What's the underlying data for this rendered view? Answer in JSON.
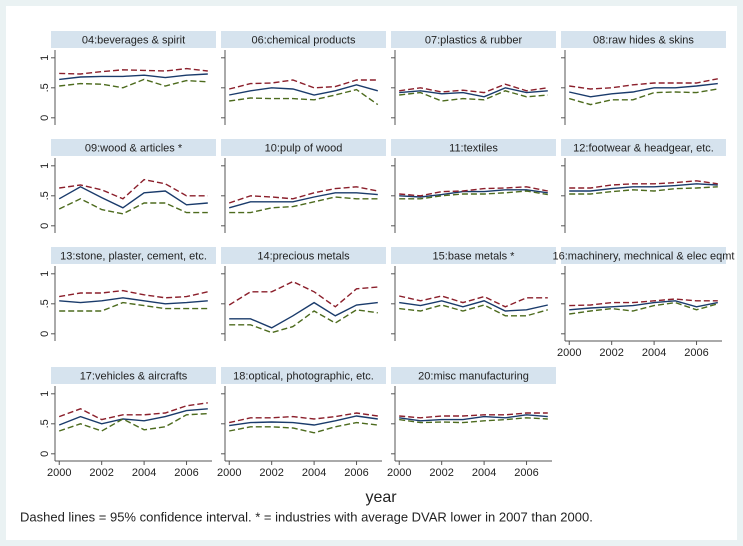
{
  "chart_data": {
    "type": "line",
    "xlabel": "year",
    "note": "Dashed lines = 95% confidence interval. * = industries with average DVAR lower in 2007 than 2000.",
    "x": [
      2000,
      2001,
      2002,
      2003,
      2004,
      2005,
      2006,
      2007
    ],
    "xlim": [
      1999.8,
      2007.2
    ],
    "xticks": [
      2000,
      2002,
      2004,
      2006
    ],
    "ylim": [
      -0.12,
      1.13
    ],
    "yticks": [
      0,
      {
        "value": 0.5,
        "label": ".5"
      },
      1
    ],
    "panels": [
      {
        "title": "04:beverages & spirit",
        "series": [
          {
            "color": "#1a3b6b",
            "dashed": false,
            "values": [
              0.64,
              0.68,
              0.69,
              0.69,
              0.71,
              0.67,
              0.71,
              0.73
            ]
          },
          {
            "color": "#8b1f2b",
            "dashed": true,
            "values": [
              0.74,
              0.73,
              0.77,
              0.8,
              0.79,
              0.78,
              0.82,
              0.78
            ]
          },
          {
            "color": "#4d6b1e",
            "dashed": true,
            "values": [
              0.53,
              0.57,
              0.56,
              0.5,
              0.64,
              0.53,
              0.62,
              0.6
            ]
          }
        ]
      },
      {
        "title": "06:chemical products",
        "series": [
          {
            "color": "#1a3b6b",
            "dashed": false,
            "values": [
              0.38,
              0.45,
              0.5,
              0.48,
              0.38,
              0.45,
              0.55,
              0.45
            ]
          },
          {
            "color": "#8b1f2b",
            "dashed": true,
            "values": [
              0.48,
              0.57,
              0.58,
              0.63,
              0.5,
              0.52,
              0.63,
              0.63
            ]
          },
          {
            "color": "#4d6b1e",
            "dashed": true,
            "values": [
              0.28,
              0.33,
              0.32,
              0.32,
              0.3,
              0.38,
              0.47,
              0.22
            ]
          }
        ]
      },
      {
        "title": "07:plastics & rubber",
        "series": [
          {
            "color": "#1a3b6b",
            "dashed": false,
            "values": [
              0.42,
              0.45,
              0.4,
              0.42,
              0.35,
              0.5,
              0.42,
              0.45
            ]
          },
          {
            "color": "#8b1f2b",
            "dashed": true,
            "values": [
              0.45,
              0.5,
              0.43,
              0.46,
              0.42,
              0.56,
              0.45,
              0.5
            ]
          },
          {
            "color": "#4d6b1e",
            "dashed": true,
            "values": [
              0.38,
              0.42,
              0.28,
              0.32,
              0.3,
              0.45,
              0.35,
              0.38
            ]
          }
        ]
      },
      {
        "title": "08:raw hides & skins",
        "series": [
          {
            "color": "#1a3b6b",
            "dashed": false,
            "values": [
              0.43,
              0.35,
              0.4,
              0.43,
              0.5,
              0.5,
              0.53,
              0.57
            ]
          },
          {
            "color": "#8b1f2b",
            "dashed": true,
            "values": [
              0.53,
              0.48,
              0.5,
              0.55,
              0.58,
              0.58,
              0.58,
              0.65
            ]
          },
          {
            "color": "#4d6b1e",
            "dashed": true,
            "values": [
              0.32,
              0.22,
              0.3,
              0.3,
              0.42,
              0.43,
              0.42,
              0.48
            ]
          }
        ]
      },
      {
        "title": "09:wood & articles *",
        "series": [
          {
            "color": "#1a3b6b",
            "dashed": false,
            "values": [
              0.45,
              0.65,
              0.47,
              0.3,
              0.55,
              0.58,
              0.35,
              0.38
            ]
          },
          {
            "color": "#8b1f2b",
            "dashed": true,
            "values": [
              0.63,
              0.68,
              0.6,
              0.45,
              0.77,
              0.7,
              0.5,
              0.5
            ]
          },
          {
            "color": "#4d6b1e",
            "dashed": true,
            "values": [
              0.28,
              0.45,
              0.27,
              0.2,
              0.38,
              0.38,
              0.22,
              0.22
            ]
          }
        ]
      },
      {
        "title": "10:pulp of wood",
        "series": [
          {
            "color": "#1a3b6b",
            "dashed": false,
            "values": [
              0.3,
              0.4,
              0.4,
              0.4,
              0.48,
              0.55,
              0.55,
              0.52
            ]
          },
          {
            "color": "#8b1f2b",
            "dashed": true,
            "values": [
              0.38,
              0.5,
              0.48,
              0.45,
              0.55,
              0.62,
              0.65,
              0.58
            ]
          },
          {
            "color": "#4d6b1e",
            "dashed": true,
            "values": [
              0.22,
              0.22,
              0.3,
              0.32,
              0.4,
              0.48,
              0.45,
              0.45
            ]
          }
        ]
      },
      {
        "title": "11:textiles",
        "series": [
          {
            "color": "#1a3b6b",
            "dashed": false,
            "values": [
              0.5,
              0.48,
              0.52,
              0.57,
              0.57,
              0.6,
              0.6,
              0.55
            ]
          },
          {
            "color": "#8b1f2b",
            "dashed": true,
            "values": [
              0.53,
              0.5,
              0.57,
              0.58,
              0.62,
              0.63,
              0.65,
              0.58
            ]
          },
          {
            "color": "#4d6b1e",
            "dashed": true,
            "values": [
              0.45,
              0.45,
              0.5,
              0.53,
              0.53,
              0.55,
              0.58,
              0.52
            ]
          }
        ]
      },
      {
        "title": "12:footwear & headgear, etc.",
        "series": [
          {
            "color": "#1a3b6b",
            "dashed": false,
            "values": [
              0.58,
              0.58,
              0.62,
              0.65,
              0.65,
              0.67,
              0.7,
              0.68
            ]
          },
          {
            "color": "#8b1f2b",
            "dashed": true,
            "values": [
              0.63,
              0.63,
              0.68,
              0.7,
              0.7,
              0.72,
              0.75,
              0.7
            ]
          },
          {
            "color": "#4d6b1e",
            "dashed": true,
            "values": [
              0.53,
              0.53,
              0.57,
              0.6,
              0.58,
              0.62,
              0.63,
              0.65
            ]
          }
        ]
      },
      {
        "title": "13:stone, plaster, cement, etc.",
        "series": [
          {
            "color": "#1a3b6b",
            "dashed": false,
            "values": [
              0.55,
              0.52,
              0.55,
              0.6,
              0.55,
              0.5,
              0.52,
              0.55
            ]
          },
          {
            "color": "#8b1f2b",
            "dashed": true,
            "values": [
              0.62,
              0.68,
              0.68,
              0.72,
              0.65,
              0.6,
              0.62,
              0.7
            ]
          },
          {
            "color": "#4d6b1e",
            "dashed": true,
            "values": [
              0.38,
              0.38,
              0.38,
              0.52,
              0.47,
              0.42,
              0.42,
              0.42
            ]
          }
        ]
      },
      {
        "title": "14:precious metals",
        "series": [
          {
            "color": "#1a3b6b",
            "dashed": false,
            "values": [
              0.25,
              0.25,
              0.1,
              0.3,
              0.52,
              0.3,
              0.48,
              0.52
            ]
          },
          {
            "color": "#8b1f2b",
            "dashed": true,
            "values": [
              0.48,
              0.7,
              0.7,
              0.87,
              0.7,
              0.45,
              0.75,
              0.78
            ]
          },
          {
            "color": "#4d6b1e",
            "dashed": true,
            "values": [
              0.15,
              0.15,
              0.02,
              0.12,
              0.38,
              0.18,
              0.4,
              0.35
            ]
          }
        ]
      },
      {
        "title": "15:base metals *",
        "series": [
          {
            "color": "#1a3b6b",
            "dashed": false,
            "values": [
              0.52,
              0.47,
              0.55,
              0.45,
              0.55,
              0.38,
              0.4,
              0.48
            ]
          },
          {
            "color": "#8b1f2b",
            "dashed": true,
            "values": [
              0.63,
              0.55,
              0.63,
              0.52,
              0.62,
              0.45,
              0.6,
              0.6
            ]
          },
          {
            "color": "#4d6b1e",
            "dashed": true,
            "values": [
              0.42,
              0.38,
              0.48,
              0.38,
              0.48,
              0.3,
              0.3,
              0.4
            ]
          }
        ]
      },
      {
        "title": "16:machinery, mechnical & elec eqmt",
        "series": [
          {
            "color": "#1a3b6b",
            "dashed": false,
            "values": [
              0.4,
              0.43,
              0.45,
              0.47,
              0.52,
              0.55,
              0.45,
              0.52
            ]
          },
          {
            "color": "#8b1f2b",
            "dashed": true,
            "values": [
              0.47,
              0.48,
              0.52,
              0.52,
              0.55,
              0.58,
              0.55,
              0.55
            ]
          },
          {
            "color": "#4d6b1e",
            "dashed": true,
            "values": [
              0.33,
              0.38,
              0.42,
              0.38,
              0.47,
              0.52,
              0.4,
              0.5
            ]
          }
        ]
      },
      {
        "title": "17:vehicles & aircrafts",
        "series": [
          {
            "color": "#1a3b6b",
            "dashed": false,
            "values": [
              0.48,
              0.62,
              0.5,
              0.58,
              0.55,
              0.62,
              0.72,
              0.75
            ]
          },
          {
            "color": "#8b1f2b",
            "dashed": true,
            "values": [
              0.62,
              0.75,
              0.57,
              0.65,
              0.65,
              0.68,
              0.8,
              0.85
            ]
          },
          {
            "color": "#4d6b1e",
            "dashed": true,
            "values": [
              0.38,
              0.5,
              0.38,
              0.58,
              0.4,
              0.45,
              0.65,
              0.67
            ]
          }
        ]
      },
      {
        "title": "18:optical, photographic, etc.",
        "series": [
          {
            "color": "#1a3b6b",
            "dashed": false,
            "values": [
              0.47,
              0.52,
              0.53,
              0.52,
              0.48,
              0.55,
              0.63,
              0.58
            ]
          },
          {
            "color": "#8b1f2b",
            "dashed": true,
            "values": [
              0.52,
              0.6,
              0.6,
              0.62,
              0.58,
              0.62,
              0.68,
              0.63
            ]
          },
          {
            "color": "#4d6b1e",
            "dashed": true,
            "values": [
              0.38,
              0.45,
              0.45,
              0.43,
              0.35,
              0.45,
              0.52,
              0.48
            ]
          }
        ]
      },
      {
        "title": "20:misc manufacturing",
        "series": [
          {
            "color": "#1a3b6b",
            "dashed": false,
            "values": [
              0.6,
              0.55,
              0.57,
              0.57,
              0.62,
              0.6,
              0.65,
              0.62
            ]
          },
          {
            "color": "#8b1f2b",
            "dashed": true,
            "values": [
              0.63,
              0.6,
              0.63,
              0.63,
              0.65,
              0.65,
              0.68,
              0.68
            ]
          },
          {
            "color": "#4d6b1e",
            "dashed": true,
            "values": [
              0.57,
              0.52,
              0.53,
              0.52,
              0.55,
              0.57,
              0.6,
              0.58
            ]
          }
        ]
      }
    ]
  }
}
